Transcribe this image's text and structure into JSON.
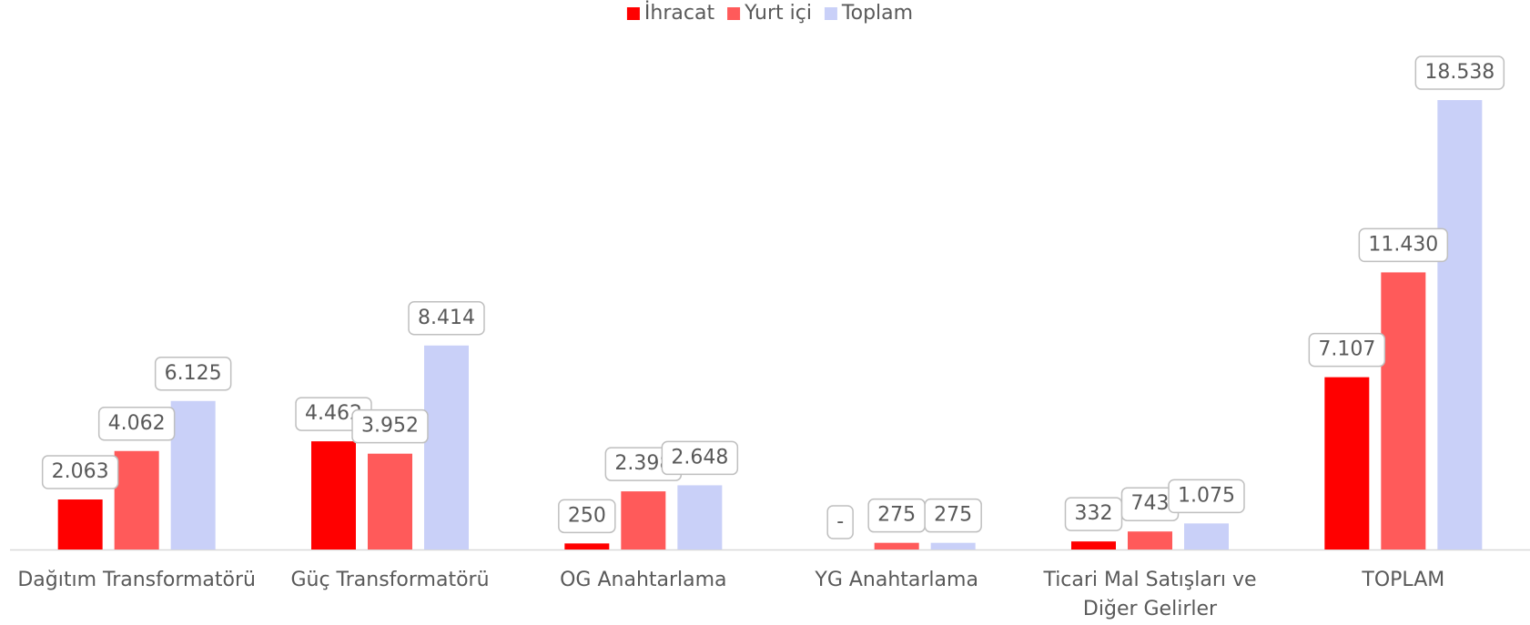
{
  "chart_data": {
    "type": "bar",
    "categories": [
      "Dağıtım Transformatörü",
      "Güç Transformatörü",
      "OG Anahtarlama",
      "YG Anahtarlama",
      "Ticari Mal Satışları ve Diğer Gelirler",
      "TOPLAM"
    ],
    "series": [
      {
        "name": "İhracat",
        "color": "#ff0000",
        "values": [
          2063,
          4462,
          250,
          0,
          332,
          7107
        ],
        "value_labels": [
          "2.063",
          "4.462",
          "250",
          "-",
          "332",
          "7.107"
        ]
      },
      {
        "name": "Yurt içi",
        "color": "#ff5a5a",
        "values": [
          4062,
          3952,
          2398,
          275,
          743,
          11430
        ],
        "value_labels": [
          "4.062",
          "3.952",
          "2.398",
          "275",
          "743",
          "11.430"
        ]
      },
      {
        "name": "Toplam",
        "color": "#c9d0f8",
        "values": [
          6125,
          8414,
          2648,
          275,
          1075,
          18538
        ],
        "value_labels": [
          "6.125",
          "8.414",
          "2.648",
          "275",
          "1.075",
          "18.538"
        ]
      }
    ],
    "legend": "top"
  }
}
